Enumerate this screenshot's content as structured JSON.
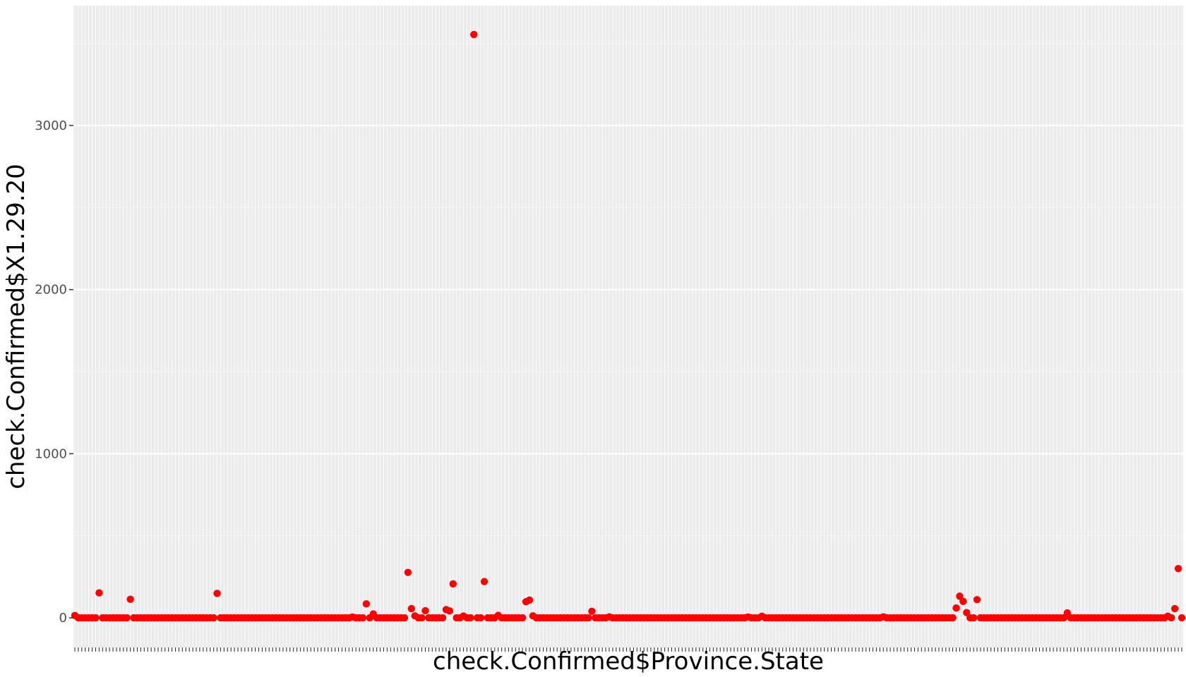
{
  "chart_data": {
    "type": "scatter",
    "xlabel": "check.Confirmed$Province.State",
    "ylabel": "check.Confirmed$X1.29.20",
    "x_count": 320,
    "ylim": [
      -180,
      3730
    ],
    "yticks": [
      0,
      1000,
      2000,
      3000
    ],
    "grid": true,
    "legend": "none",
    "colors": {
      "point": "#ff0000",
      "panel": "#ebebeb",
      "grid_major": "#ffffff",
      "grid_minor": "#f5f5f5",
      "tick_label": "#4d4d4d",
      "axis_title": "#000000"
    },
    "points": [
      {
        "x": 1,
        "y": 14
      },
      {
        "x": 8,
        "y": 152
      },
      {
        "x": 17,
        "y": 113
      },
      {
        "x": 42,
        "y": 149
      },
      {
        "x": 81,
        "y": 5
      },
      {
        "x": 85,
        "y": 85
      },
      {
        "x": 87,
        "y": 24
      },
      {
        "x": 97,
        "y": 277
      },
      {
        "x": 98,
        "y": 56
      },
      {
        "x": 99,
        "y": 12
      },
      {
        "x": 102,
        "y": 43
      },
      {
        "x": 108,
        "y": 50
      },
      {
        "x": 109,
        "y": 42
      },
      {
        "x": 110,
        "y": 207
      },
      {
        "x": 113,
        "y": 11
      },
      {
        "x": 116,
        "y": 3554
      },
      {
        "x": 119,
        "y": 221
      },
      {
        "x": 123,
        "y": 15
      },
      {
        "x": 131,
        "y": 98
      },
      {
        "x": 132,
        "y": 108
      },
      {
        "x": 133,
        "y": 12
      },
      {
        "x": 150,
        "y": 40
      },
      {
        "x": 155,
        "y": 6
      },
      {
        "x": 195,
        "y": 5
      },
      {
        "x": 199,
        "y": 10
      },
      {
        "x": 234,
        "y": 6
      },
      {
        "x": 255,
        "y": 60
      },
      {
        "x": 256,
        "y": 132
      },
      {
        "x": 257,
        "y": 100
      },
      {
        "x": 258,
        "y": 32
      },
      {
        "x": 261,
        "y": 111
      },
      {
        "x": 287,
        "y": 30
      },
      {
        "x": 316,
        "y": 10
      },
      {
        "x": 318,
        "y": 56
      },
      {
        "x": 319,
        "y": 300
      }
    ]
  }
}
